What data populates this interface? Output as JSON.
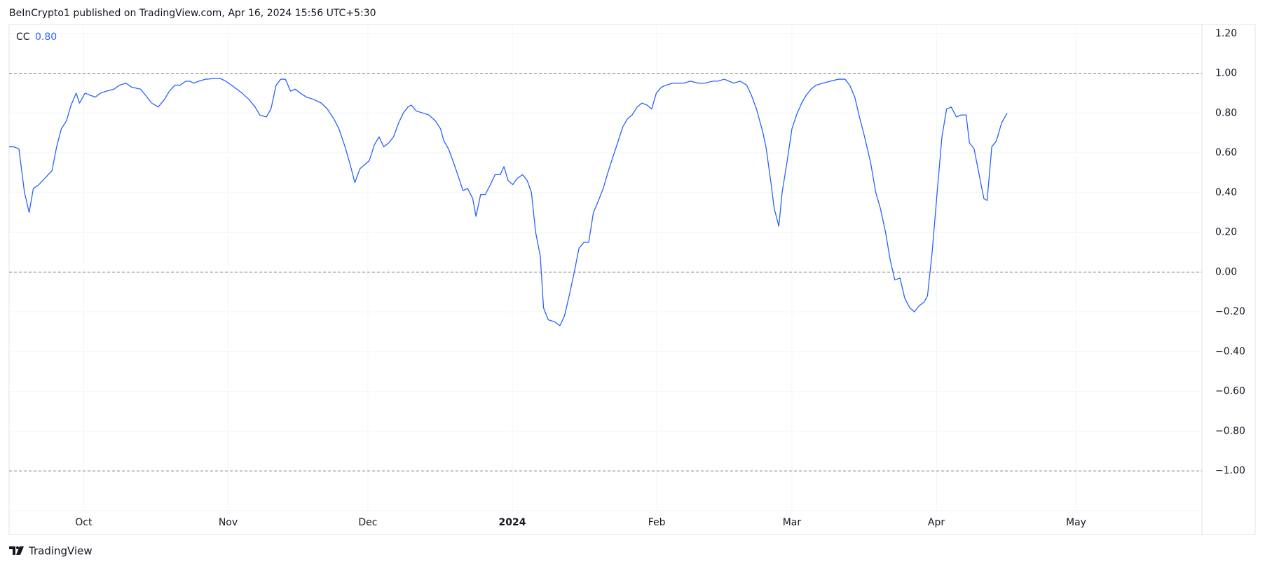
{
  "header": "BeInCrypto1 published on TradingView.com, Apr 16, 2024 15:56 UTC+5:30",
  "footer": "TradingView",
  "chart_data": {
    "type": "line",
    "series": [
      {
        "name": "CC",
        "color": "#2962ff",
        "last_label": "0.80",
        "x": [
          0,
          1.0,
          2.1,
          3.3,
          4.3,
          5.2,
          6.4,
          8.0,
          9.2,
          10.2,
          11.2,
          12.3,
          13.3,
          14.4,
          15.1,
          16.3,
          17.3,
          18.5,
          19.6,
          20.9,
          22.5,
          23.7,
          25.1,
          26.3,
          28.2,
          29.6,
          30.6,
          32.0,
          33.4,
          34.4,
          35.6,
          36.7,
          37.9,
          38.8,
          39.6,
          40.7,
          42.2,
          45.2,
          46.5,
          48.3,
          50.0,
          51.4,
          52.8,
          53.8,
          55.2,
          56.2,
          57.3,
          58.3,
          59.3,
          60.4,
          61.4,
          62.5,
          63.8,
          65.2,
          67.0,
          68.3,
          69.7,
          70.8,
          72.1,
          73.2,
          74.2,
          75.3,
          76.3,
          77.3,
          78.4,
          79.4,
          80.4,
          81.5,
          82.5,
          83.6,
          84.6,
          85.6,
          86.3,
          87.4,
          88.8,
          90.1,
          91.5,
          92.6,
          93.3,
          94.3,
          95.7,
          96.7,
          97.4,
          98.4,
          99.5,
          100.2,
          101.2,
          102.2,
          103.3,
          104.3,
          105.4,
          106.2,
          107.1,
          108.1,
          109.0,
          110.2,
          111.2,
          112.1,
          113.0,
          114.0,
          114.7,
          115.7,
          117.1,
          118.2,
          119.2,
          120.2,
          121.3,
          122.3,
          123.4,
          124.4,
          125.4,
          126.5,
          127.5,
          128.5,
          129.6,
          130.6,
          131.7,
          132.7,
          133.7,
          134.8,
          135.8,
          136.9,
          137.9,
          138.9,
          140.0,
          141.0,
          142.4,
          144.8,
          146.2,
          147.9,
          149.3,
          151.0,
          152.1,
          153.5,
          154.5,
          155.5,
          156.9,
          158.3,
          159.3,
          160.4,
          161.8,
          162.5,
          163.5,
          164.2,
          165.2,
          165.9,
          167.0,
          168.0,
          169.0,
          170.1,
          171.1,
          172.1,
          173.2,
          174.6,
          176.3,
          178.0,
          179.4,
          180.4,
          181.5,
          182.5,
          183.6,
          184.9,
          186.0,
          187.0,
          188.1,
          189.1,
          190.1,
          191.2,
          192.2,
          193.3,
          194.3,
          195.3,
          196.4,
          197.1,
          198.1,
          199.1,
          200.2,
          201.2,
          202.2,
          203.3,
          204.3,
          205.4,
          206.1,
          207.1,
          208.1,
          209.2,
          209.9,
          210.9,
          211.9,
          213.0,
          214.2
        ],
        "values": [
          0.63,
          0.63,
          0.62,
          0.4,
          0.3,
          0.42,
          0.44,
          0.48,
          0.51,
          0.63,
          0.72,
          0.76,
          0.84,
          0.9,
          0.85,
          0.9,
          0.89,
          0.88,
          0.9,
          0.91,
          0.92,
          0.94,
          0.95,
          0.93,
          0.92,
          0.88,
          0.85,
          0.83,
          0.87,
          0.91,
          0.94,
          0.94,
          0.96,
          0.96,
          0.95,
          0.96,
          0.97,
          0.975,
          0.96,
          0.93,
          0.9,
          0.87,
          0.83,
          0.79,
          0.78,
          0.82,
          0.94,
          0.97,
          0.97,
          0.91,
          0.92,
          0.9,
          0.88,
          0.87,
          0.85,
          0.82,
          0.77,
          0.72,
          0.63,
          0.54,
          0.45,
          0.52,
          0.54,
          0.56,
          0.64,
          0.68,
          0.63,
          0.65,
          0.68,
          0.75,
          0.8,
          0.83,
          0.84,
          0.81,
          0.8,
          0.79,
          0.76,
          0.72,
          0.66,
          0.62,
          0.53,
          0.46,
          0.41,
          0.42,
          0.37,
          0.28,
          0.39,
          0.39,
          0.44,
          0.49,
          0.49,
          0.53,
          0.46,
          0.44,
          0.47,
          0.49,
          0.46,
          0.4,
          0.2,
          0.08,
          -0.18,
          -0.24,
          -0.25,
          -0.27,
          -0.22,
          -0.12,
          0.0,
          0.12,
          0.15,
          0.15,
          0.3,
          0.36,
          0.42,
          0.5,
          0.58,
          0.65,
          0.73,
          0.77,
          0.79,
          0.83,
          0.85,
          0.84,
          0.82,
          0.9,
          0.93,
          0.94,
          0.95,
          0.95,
          0.96,
          0.95,
          0.95,
          0.96,
          0.96,
          0.97,
          0.96,
          0.95,
          0.96,
          0.94,
          0.89,
          0.82,
          0.7,
          0.62,
          0.45,
          0.32,
          0.23,
          0.4,
          0.56,
          0.72,
          0.79,
          0.85,
          0.89,
          0.92,
          0.94,
          0.95,
          0.96,
          0.97,
          0.97,
          0.94,
          0.88,
          0.78,
          0.68,
          0.55,
          0.4,
          0.32,
          0.2,
          0.06,
          -0.04,
          -0.03,
          -0.13,
          -0.18,
          -0.2,
          -0.17,
          -0.15,
          -0.12,
          0.1,
          0.38,
          0.68,
          0.82,
          0.83,
          0.78,
          0.79,
          0.79,
          0.65,
          0.62,
          0.5,
          0.37,
          0.36,
          0.63,
          0.66,
          0.75,
          0.8
        ]
      }
    ],
    "xlim": [
      0,
      256
    ],
    "xticks": [
      {
        "value": 16,
        "label": "Oct"
      },
      {
        "value": 47,
        "label": "Nov"
      },
      {
        "value": 77,
        "label": "Dec"
      },
      {
        "value": 108,
        "label": "2024"
      },
      {
        "value": 139,
        "label": "Feb"
      },
      {
        "value": 168,
        "label": "Mar"
      },
      {
        "value": 199,
        "label": "Apr"
      },
      {
        "value": 229,
        "label": "May"
      }
    ],
    "ylim": [
      -1.2,
      1.245
    ],
    "yticks": [
      {
        "value": 1.2,
        "label": "1.20"
      },
      {
        "value": 1.0,
        "label": "1.00"
      },
      {
        "value": 0.8,
        "label": "0.80"
      },
      {
        "value": 0.6,
        "label": "0.60"
      },
      {
        "value": 0.4,
        "label": "0.40"
      },
      {
        "value": 0.2,
        "label": "0.20"
      },
      {
        "value": 0,
        "label": "0.00"
      },
      {
        "value": -0.2,
        "label": "−0.20"
      },
      {
        "value": -0.4,
        "label": "−0.40"
      },
      {
        "value": -0.6,
        "label": "−0.60"
      },
      {
        "value": -0.8,
        "label": "−0.80"
      },
      {
        "value": -1.0,
        "label": "−1.00"
      }
    ],
    "hlines": [
      1,
      0,
      -1
    ],
    "grid": true
  }
}
